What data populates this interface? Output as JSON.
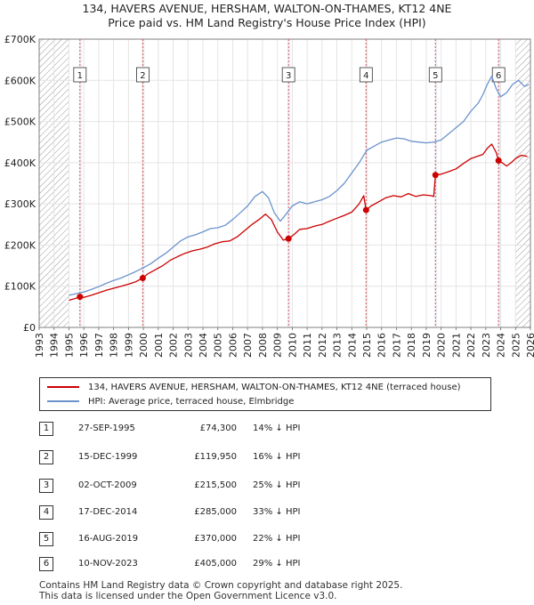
{
  "title_line1": "134, HAVERS AVENUE, HERSHAM, WALTON-ON-THAMES, KT12 4NE",
  "title_line2": "Price paid vs. HM Land Registry's House Price Index (HPI)",
  "colors": {
    "price_line": "#cc0000",
    "hpi_line": "#6a93cc",
    "marker_line": "#e05555",
    "band": "#dde6f4"
  },
  "chart_data": {
    "type": "line",
    "xlim": [
      1993,
      2026
    ],
    "ylim": [
      0,
      700000
    ],
    "y_ticks": [
      0,
      100000,
      200000,
      300000,
      400000,
      500000,
      600000,
      700000
    ],
    "y_tick_labels": [
      "£0",
      "£100K",
      "£200K",
      "£300K",
      "£400K",
      "£500K",
      "£600K",
      "£700K"
    ],
    "x_ticks": [
      1993,
      1994,
      1995,
      1996,
      1997,
      1998,
      1999,
      2000,
      2001,
      2002,
      2003,
      2004,
      2005,
      2006,
      2007,
      2008,
      2009,
      2010,
      2011,
      2012,
      2013,
      2014,
      2015,
      2016,
      2017,
      2018,
      2019,
      2020,
      2021,
      2022,
      2023,
      2024,
      2025,
      2026
    ],
    "x_tick_labels": [
      "1993",
      "1994",
      "1995",
      "1996",
      "1997",
      "1998",
      "1999",
      "2000",
      "2001",
      "2002",
      "2003",
      "2004",
      "2005",
      "2006",
      "2007",
      "2008",
      "2009",
      "2010",
      "2011",
      "2012",
      "2013",
      "2014",
      "2015",
      "2016",
      "2017",
      "2018",
      "2019",
      "2020",
      "2021",
      "2022",
      "2023",
      "2024",
      "2025",
      "2026"
    ],
    "series": [
      {
        "name": "134, HAVERS AVENUE, HERSHAM, WALTON-ON-THAMES, KT12 4NE (terraced house)",
        "x": [
          1995.0,
          1995.4,
          1995.74,
          1996.0,
          1996.5,
          1997.0,
          1997.5,
          1998.0,
          1998.5,
          1999.0,
          1999.5,
          1999.96,
          2000.3,
          2000.8,
          2001.3,
          2001.8,
          2002.3,
          2002.8,
          2003.3,
          2003.8,
          2004.3,
          2004.8,
          2005.3,
          2005.8,
          2006.3,
          2006.8,
          2007.3,
          2007.8,
          2008.2,
          2008.6,
          2009.0,
          2009.4,
          2009.75,
          2010.1,
          2010.5,
          2011.0,
          2011.5,
          2012.0,
          2012.5,
          2013.0,
          2013.5,
          2014.0,
          2014.5,
          2014.8,
          2014.96,
          2015.3,
          2015.8,
          2016.3,
          2016.8,
          2017.3,
          2017.8,
          2018.3,
          2018.8,
          2019.3,
          2019.5,
          2019.62,
          2020.0,
          2020.5,
          2021.0,
          2021.5,
          2022.0,
          2022.4,
          2022.8,
          2023.1,
          2023.4,
          2023.7,
          2023.86,
          2024.1,
          2024.4,
          2024.7,
          2025.0,
          2025.4,
          2025.8
        ],
        "y": [
          66000,
          70000,
          74300,
          73000,
          78000,
          84000,
          90000,
          95000,
          100000,
          105000,
          111000,
          119950,
          130000,
          140000,
          150000,
          163000,
          172000,
          180000,
          186000,
          190000,
          195000,
          203000,
          208000,
          210000,
          220000,
          235000,
          250000,
          263000,
          275000,
          262000,
          232000,
          212000,
          215500,
          225000,
          238000,
          240000,
          246000,
          250000,
          258000,
          265000,
          272000,
          280000,
          300000,
          320000,
          285000,
          295000,
          305000,
          315000,
          320000,
          317000,
          325000,
          318000,
          322000,
          320000,
          318000,
          370000,
          372000,
          378000,
          385000,
          398000,
          410000,
          415000,
          420000,
          435000,
          445000,
          425000,
          405000,
          400000,
          392000,
          400000,
          410000,
          418000,
          415000
        ]
      },
      {
        "name": "HPI: Average price, terraced house, Elmbridge",
        "x": [
          1995.0,
          1995.5,
          1996.0,
          1996.5,
          1997.0,
          1997.5,
          1998.0,
          1998.5,
          1999.0,
          1999.5,
          2000.0,
          2000.5,
          2001.0,
          2001.5,
          2002.0,
          2002.5,
          2003.0,
          2003.5,
          2004.0,
          2004.5,
          2005.0,
          2005.5,
          2006.0,
          2006.5,
          2007.0,
          2007.5,
          2008.0,
          2008.4,
          2008.8,
          2009.2,
          2009.6,
          2010.0,
          2010.5,
          2011.0,
          2011.5,
          2012.0,
          2012.5,
          2013.0,
          2013.5,
          2014.0,
          2014.5,
          2015.0,
          2015.5,
          2016.0,
          2016.5,
          2017.0,
          2017.5,
          2018.0,
          2018.5,
          2019.0,
          2019.5,
          2020.0,
          2020.5,
          2021.0,
          2021.5,
          2022.0,
          2022.5,
          2022.8,
          2023.1,
          2023.4,
          2023.7,
          2024.0,
          2024.4,
          2024.8,
          2025.2,
          2025.6,
          2025.9
        ],
        "y": [
          78000,
          82000,
          86000,
          92000,
          99000,
          107000,
          114000,
          120000,
          128000,
          136000,
          145000,
          155000,
          168000,
          180000,
          195000,
          210000,
          220000,
          225000,
          232000,
          240000,
          242000,
          248000,
          262000,
          278000,
          295000,
          318000,
          330000,
          315000,
          278000,
          258000,
          276000,
          295000,
          305000,
          300000,
          305000,
          310000,
          318000,
          332000,
          350000,
          375000,
          400000,
          430000,
          440000,
          450000,
          455000,
          460000,
          458000,
          452000,
          450000,
          448000,
          450000,
          455000,
          470000,
          485000,
          500000,
          525000,
          545000,
          565000,
          590000,
          610000,
          580000,
          560000,
          570000,
          590000,
          600000,
          585000,
          590000
        ]
      }
    ],
    "transactions": [
      {
        "id": "1",
        "x": 1995.74,
        "price": 74300
      },
      {
        "id": "2",
        "x": 1999.96,
        "price": 119950
      },
      {
        "id": "3",
        "x": 2009.75,
        "price": 215500
      },
      {
        "id": "4",
        "x": 2014.96,
        "price": 285000
      },
      {
        "id": "5",
        "x": 2019.62,
        "price": 370000
      },
      {
        "id": "6",
        "x": 2023.86,
        "price": 405000
      }
    ],
    "hatched_ranges": [
      [
        1993,
        1995.0
      ],
      [
        2025.0,
        2026
      ]
    ]
  },
  "legend": {
    "price_label": "134, HAVERS AVENUE, HERSHAM, WALTON-ON-THAMES, KT12 4NE (terraced house)",
    "hpi_label": "HPI: Average price, terraced house, Elmbridge"
  },
  "transactions_table": [
    {
      "num": "1",
      "date": "27-SEP-1995",
      "price": "£74,300",
      "hpi": "14% ↓ HPI"
    },
    {
      "num": "2",
      "date": "15-DEC-1999",
      "price": "£119,950",
      "hpi": "16% ↓ HPI"
    },
    {
      "num": "3",
      "date": "02-OCT-2009",
      "price": "£215,500",
      "hpi": "25% ↓ HPI"
    },
    {
      "num": "4",
      "date": "17-DEC-2014",
      "price": "£285,000",
      "hpi": "33% ↓ HPI"
    },
    {
      "num": "5",
      "date": "16-AUG-2019",
      "price": "£370,000",
      "hpi": "22% ↓ HPI"
    },
    {
      "num": "6",
      "date": "10-NOV-2023",
      "price": "£405,000",
      "hpi": "29% ↓ HPI"
    }
  ],
  "footer_line1": "Contains HM Land Registry data © Crown copyright and database right 2025.",
  "footer_line2": "This data is licensed under the Open Government Licence v3.0."
}
